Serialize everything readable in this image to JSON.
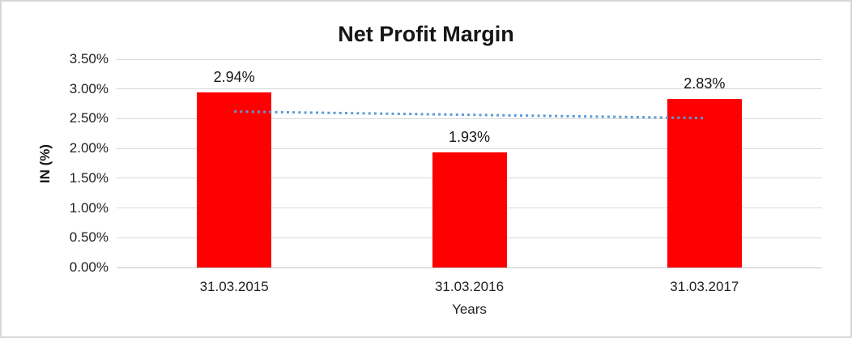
{
  "frame": {
    "background": "#FFFFFF",
    "border_color": "#D7D7D7"
  },
  "chart_data": {
    "type": "bar",
    "title": "Net Profit Margin",
    "xlabel": "Years",
    "ylabel": "IN (%)",
    "categories": [
      "31.03.2015",
      "31.03.2016",
      "31.03.2017"
    ],
    "series": [
      {
        "name": "Net Profit Margin",
        "color": "#FF0000",
        "values": [
          2.94,
          1.93,
          2.83
        ],
        "value_labels": [
          "2.94%",
          "1.93%",
          "2.83%"
        ]
      }
    ],
    "ylim": [
      0,
      3.5
    ],
    "ytick_step": 0.5,
    "yticks": [
      0,
      0.5,
      1,
      1.5,
      2,
      2.5,
      3,
      3.5
    ],
    "ytick_labels": [
      "0.00%",
      "0.50%",
      "1.00%",
      "1.50%",
      "2.00%",
      "2.50%",
      "3.00%",
      "3.50%"
    ],
    "grid": true,
    "legend": "none",
    "gridline_color": "#D9D9D9",
    "label_color": "#1F1F1F",
    "trendline": {
      "type": "linear",
      "line_style": "dotted",
      "color": "#5B9BD5",
      "start_value": 2.62,
      "end_value": 2.51
    }
  }
}
